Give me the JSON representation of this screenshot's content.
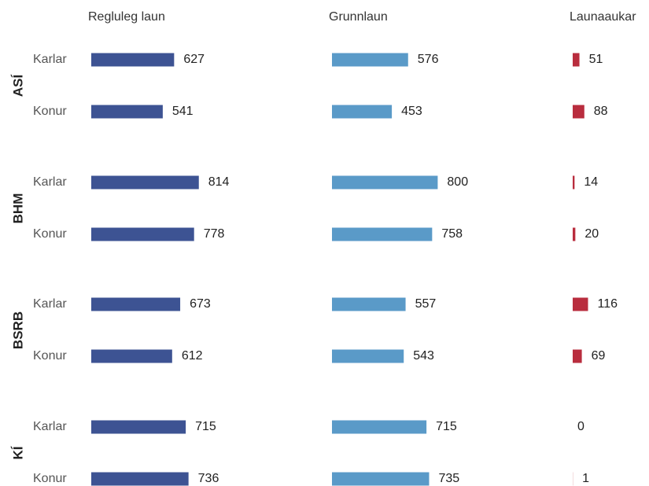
{
  "chart_data": {
    "type": "bar",
    "panels": [
      {
        "title": "Regluleg laun",
        "key": "regluleg",
        "color": "#3d5393"
      },
      {
        "title": "Grunnlaun",
        "key": "grunn",
        "color": "#5a9ac8"
      },
      {
        "title": "Launaaukar",
        "key": "aukar",
        "color": "#b92d3e"
      }
    ],
    "groups": [
      {
        "name": "ASÍ",
        "rows": [
          {
            "label": "Karlar",
            "regluleg": 627,
            "grunn": 576,
            "aukar": 51
          },
          {
            "label": "Konur",
            "regluleg": 541,
            "grunn": 453,
            "aukar": 88
          }
        ]
      },
      {
        "name": "BHM",
        "rows": [
          {
            "label": "Karlar",
            "regluleg": 814,
            "grunn": 800,
            "aukar": 14
          },
          {
            "label": "Konur",
            "regluleg": 778,
            "grunn": 758,
            "aukar": 20
          }
        ]
      },
      {
        "name": "BSRB",
        "rows": [
          {
            "label": "Karlar",
            "regluleg": 673,
            "grunn": 557,
            "aukar": 116
          },
          {
            "label": "Konur",
            "regluleg": 612,
            "grunn": 543,
            "aukar": 69
          }
        ]
      },
      {
        "name": "KÍ",
        "rows": [
          {
            "label": "Karlar",
            "regluleg": 715,
            "grunn": 715,
            "aukar": 0
          },
          {
            "label": "Konur",
            "regluleg": 736,
            "grunn": 735,
            "aukar": 1
          }
        ]
      }
    ]
  }
}
